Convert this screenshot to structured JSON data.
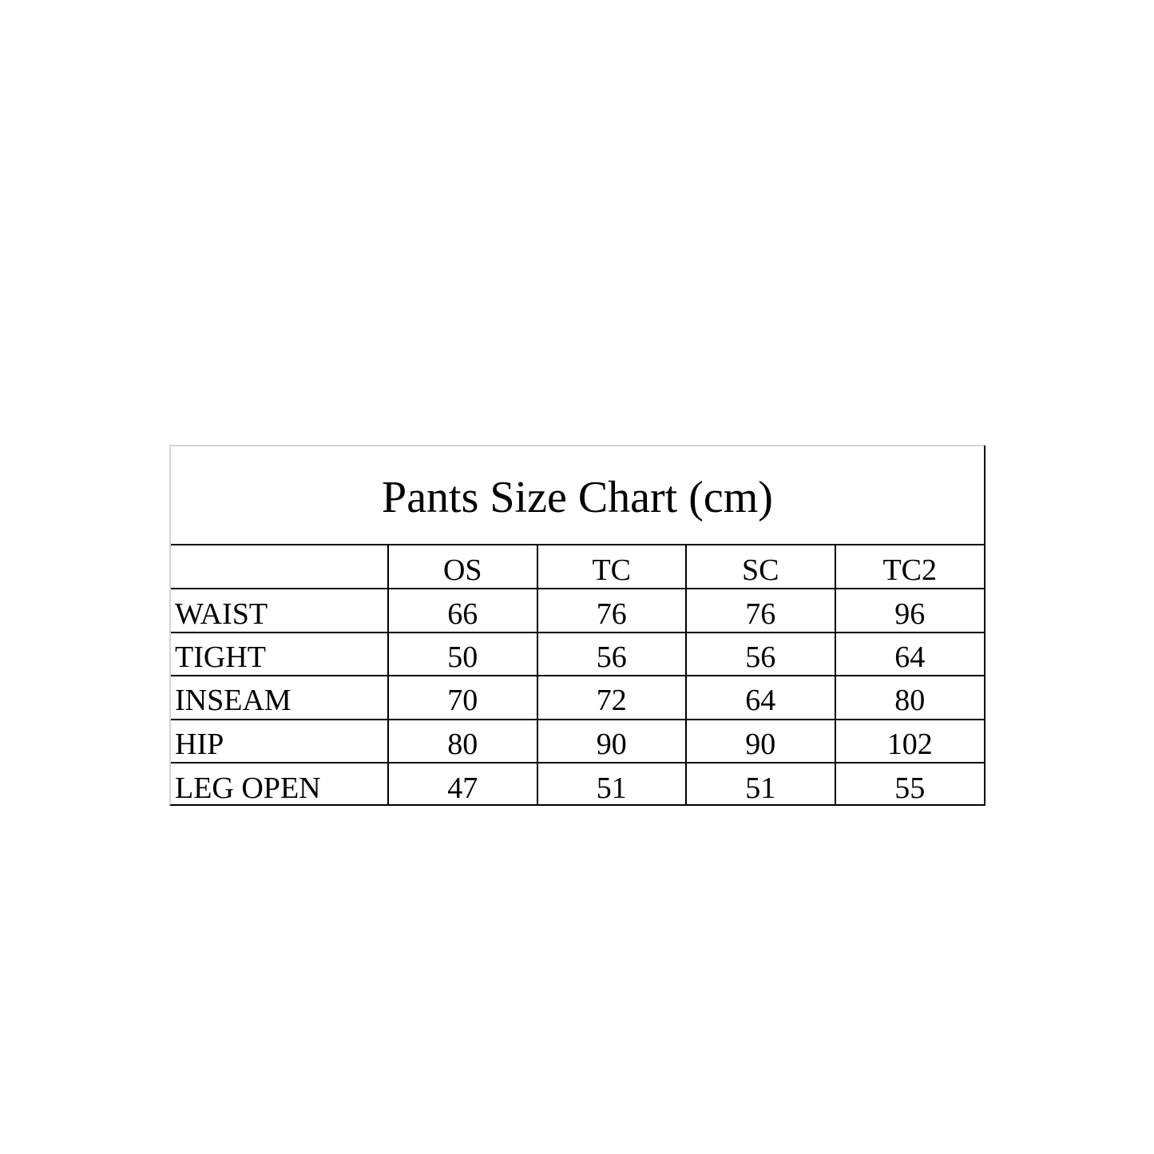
{
  "title": "Pants Size Chart (cm)",
  "columns": [
    "",
    "OS",
    "TC",
    "SC",
    "TC2"
  ],
  "rows": [
    {
      "label": "WAIST",
      "values": [
        "66",
        "76",
        "76",
        "96"
      ]
    },
    {
      "label": "TIGHT",
      "values": [
        "50",
        "56",
        "56",
        "64"
      ]
    },
    {
      "label": "INSEAM",
      "values": [
        "70",
        "72",
        "64",
        "80"
      ]
    },
    {
      "label": "HIP",
      "values": [
        "80",
        "90",
        "90",
        "102"
      ]
    },
    {
      "label": "LEG OPEN",
      "values": [
        "47",
        "51",
        "51",
        "55"
      ]
    }
  ]
}
